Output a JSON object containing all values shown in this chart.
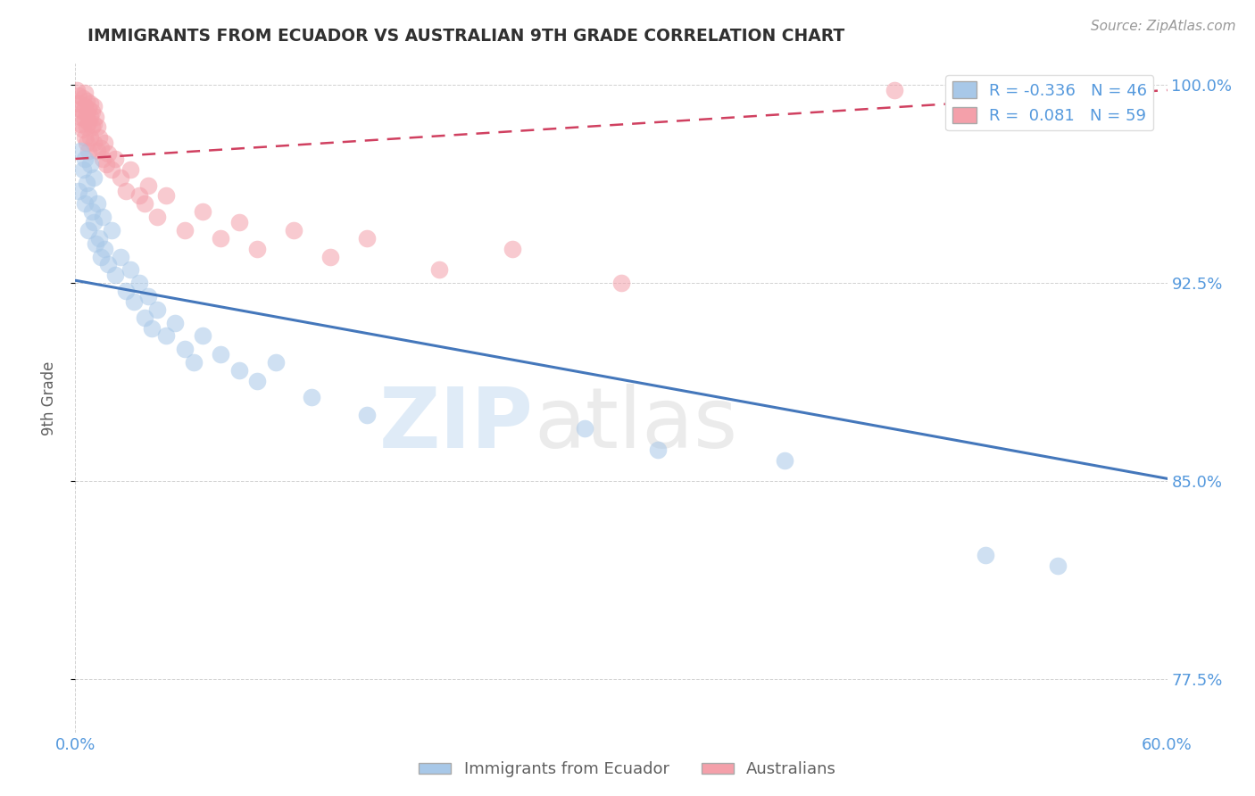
{
  "title": "IMMIGRANTS FROM ECUADOR VS AUSTRALIAN 9TH GRADE CORRELATION CHART",
  "source": "Source: ZipAtlas.com",
  "ylabel": "9th Grade",
  "xlim": [
    0.0,
    0.6
  ],
  "ylim": [
    0.755,
    1.008
  ],
  "yticks": [
    0.775,
    0.85,
    0.925,
    1.0
  ],
  "ytick_labels": [
    "77.5%",
    "85.0%",
    "92.5%",
    "100.0%"
  ],
  "blue_color": "#a8c8e8",
  "pink_color": "#f4a0aa",
  "blue_line_color": "#4477bb",
  "pink_line_color": "#d04060",
  "R_blue": -0.336,
  "N_blue": 46,
  "R_pink": 0.081,
  "N_pink": 59,
  "legend_label_blue": "Immigrants from Ecuador",
  "legend_label_pink": "Australians",
  "watermark_zip": "ZIP",
  "watermark_atlas": "atlas",
  "blue_line_x0": 0.0,
  "blue_line_y0": 0.926,
  "blue_line_x1": 0.6,
  "blue_line_y1": 0.851,
  "pink_line_x0": 0.0,
  "pink_line_y0": 0.972,
  "pink_line_x1": 0.6,
  "pink_line_y1": 0.998,
  "blue_scatter": [
    [
      0.002,
      0.96
    ],
    [
      0.003,
      0.975
    ],
    [
      0.004,
      0.968
    ],
    [
      0.005,
      0.955
    ],
    [
      0.005,
      0.972
    ],
    [
      0.006,
      0.963
    ],
    [
      0.007,
      0.958
    ],
    [
      0.007,
      0.945
    ],
    [
      0.008,
      0.97
    ],
    [
      0.009,
      0.952
    ],
    [
      0.01,
      0.965
    ],
    [
      0.01,
      0.948
    ],
    [
      0.011,
      0.94
    ],
    [
      0.012,
      0.955
    ],
    [
      0.013,
      0.942
    ],
    [
      0.014,
      0.935
    ],
    [
      0.015,
      0.95
    ],
    [
      0.016,
      0.938
    ],
    [
      0.018,
      0.932
    ],
    [
      0.02,
      0.945
    ],
    [
      0.022,
      0.928
    ],
    [
      0.025,
      0.935
    ],
    [
      0.028,
      0.922
    ],
    [
      0.03,
      0.93
    ],
    [
      0.032,
      0.918
    ],
    [
      0.035,
      0.925
    ],
    [
      0.038,
      0.912
    ],
    [
      0.04,
      0.92
    ],
    [
      0.042,
      0.908
    ],
    [
      0.045,
      0.915
    ],
    [
      0.05,
      0.905
    ],
    [
      0.055,
      0.91
    ],
    [
      0.06,
      0.9
    ],
    [
      0.065,
      0.895
    ],
    [
      0.07,
      0.905
    ],
    [
      0.08,
      0.898
    ],
    [
      0.09,
      0.892
    ],
    [
      0.1,
      0.888
    ],
    [
      0.11,
      0.895
    ],
    [
      0.13,
      0.882
    ],
    [
      0.16,
      0.875
    ],
    [
      0.28,
      0.87
    ],
    [
      0.32,
      0.862
    ],
    [
      0.39,
      0.858
    ],
    [
      0.5,
      0.822
    ],
    [
      0.54,
      0.818
    ]
  ],
  "pink_scatter": [
    [
      0.001,
      0.998
    ],
    [
      0.002,
      0.996
    ],
    [
      0.002,
      0.993
    ],
    [
      0.003,
      0.991
    ],
    [
      0.003,
      0.988
    ],
    [
      0.003,
      0.985
    ],
    [
      0.004,
      0.995
    ],
    [
      0.004,
      0.99
    ],
    [
      0.004,
      0.983
    ],
    [
      0.005,
      0.997
    ],
    [
      0.005,
      0.992
    ],
    [
      0.005,
      0.987
    ],
    [
      0.005,
      0.98
    ],
    [
      0.006,
      0.994
    ],
    [
      0.006,
      0.989
    ],
    [
      0.006,
      0.984
    ],
    [
      0.006,
      0.978
    ],
    [
      0.007,
      0.991
    ],
    [
      0.007,
      0.986
    ],
    [
      0.007,
      0.975
    ],
    [
      0.008,
      0.993
    ],
    [
      0.008,
      0.988
    ],
    [
      0.008,
      0.98
    ],
    [
      0.009,
      0.99
    ],
    [
      0.009,
      0.984
    ],
    [
      0.01,
      0.992
    ],
    [
      0.01,
      0.985
    ],
    [
      0.01,
      0.978
    ],
    [
      0.011,
      0.988
    ],
    [
      0.012,
      0.984
    ],
    [
      0.012,
      0.975
    ],
    [
      0.013,
      0.98
    ],
    [
      0.014,
      0.976
    ],
    [
      0.015,
      0.972
    ],
    [
      0.016,
      0.978
    ],
    [
      0.017,
      0.97
    ],
    [
      0.018,
      0.974
    ],
    [
      0.02,
      0.968
    ],
    [
      0.022,
      0.972
    ],
    [
      0.025,
      0.965
    ],
    [
      0.028,
      0.96
    ],
    [
      0.03,
      0.968
    ],
    [
      0.035,
      0.958
    ],
    [
      0.038,
      0.955
    ],
    [
      0.04,
      0.962
    ],
    [
      0.045,
      0.95
    ],
    [
      0.05,
      0.958
    ],
    [
      0.06,
      0.945
    ],
    [
      0.07,
      0.952
    ],
    [
      0.08,
      0.942
    ],
    [
      0.09,
      0.948
    ],
    [
      0.1,
      0.938
    ],
    [
      0.12,
      0.945
    ],
    [
      0.14,
      0.935
    ],
    [
      0.16,
      0.942
    ],
    [
      0.2,
      0.93
    ],
    [
      0.24,
      0.938
    ],
    [
      0.3,
      0.925
    ],
    [
      0.45,
      0.998
    ]
  ],
  "grid_color": "#cccccc",
  "background_color": "#ffffff",
  "title_color": "#303030",
  "axis_label_color": "#606060",
  "tick_color": "#5599dd",
  "source_color": "#999999"
}
